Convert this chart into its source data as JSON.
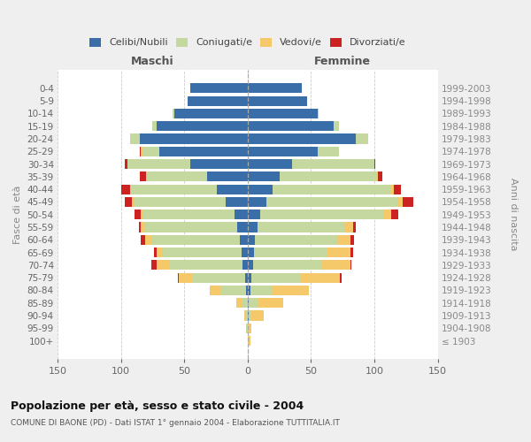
{
  "age_groups": [
    "0-4",
    "5-9",
    "10-14",
    "15-19",
    "20-24",
    "25-29",
    "30-34",
    "35-39",
    "40-44",
    "45-49",
    "50-54",
    "55-59",
    "60-64",
    "65-69",
    "70-74",
    "75-79",
    "80-84",
    "85-89",
    "90-94",
    "95-99",
    "100+"
  ],
  "birth_years": [
    "1999-2003",
    "1994-1998",
    "1989-1993",
    "1984-1988",
    "1979-1983",
    "1974-1978",
    "1969-1973",
    "1964-1968",
    "1959-1963",
    "1954-1958",
    "1949-1953",
    "1944-1948",
    "1939-1943",
    "1934-1938",
    "1929-1933",
    "1924-1928",
    "1919-1923",
    "1914-1918",
    "1909-1913",
    "1904-1908",
    "≤ 1903"
  ],
  "male_celibi": [
    45,
    47,
    58,
    72,
    85,
    70,
    45,
    32,
    24,
    17,
    10,
    8,
    6,
    5,
    4,
    2,
    1,
    0,
    0,
    0,
    0
  ],
  "male_coniugati": [
    0,
    0,
    1,
    3,
    8,
    13,
    50,
    48,
    68,
    72,
    72,
    73,
    70,
    62,
    58,
    42,
    20,
    5,
    2,
    1,
    0
  ],
  "male_vedovi": [
    0,
    0,
    0,
    0,
    0,
    1,
    0,
    0,
    1,
    2,
    2,
    3,
    5,
    5,
    10,
    10,
    9,
    4,
    1,
    0,
    0
  ],
  "male_divorziati": [
    0,
    0,
    0,
    0,
    0,
    1,
    2,
    5,
    7,
    6,
    5,
    2,
    3,
    2,
    4,
    1,
    0,
    0,
    0,
    0,
    0
  ],
  "female_celibi": [
    43,
    47,
    55,
    68,
    85,
    55,
    35,
    25,
    20,
    15,
    10,
    8,
    6,
    5,
    4,
    3,
    2,
    1,
    1,
    0,
    0
  ],
  "female_coniugati": [
    0,
    0,
    1,
    4,
    10,
    17,
    65,
    77,
    93,
    103,
    97,
    68,
    65,
    58,
    55,
    38,
    18,
    7,
    2,
    0,
    0
  ],
  "female_vedovi": [
    0,
    0,
    0,
    0,
    0,
    0,
    0,
    1,
    2,
    4,
    6,
    7,
    10,
    18,
    22,
    32,
    28,
    20,
    10,
    3,
    2
  ],
  "female_divorziati": [
    0,
    0,
    0,
    0,
    0,
    0,
    1,
    3,
    6,
    9,
    6,
    2,
    3,
    2,
    1,
    1,
    0,
    0,
    0,
    0,
    0
  ],
  "colors": {
    "celibi": "#3a6ea8",
    "coniugati": "#c5d8a0",
    "vedovi": "#f5c96a",
    "divorziati": "#cc2222"
  },
  "title_main": "Popolazione per età, sesso e stato civile - 2004",
  "title_sub": "COMUNE DI BAONE (PD) - Dati ISTAT 1° gennaio 2004 - Elaborazione TUTTITALIA.IT",
  "xlabel_left": "Maschi",
  "xlabel_right": "Femmine",
  "ylabel_left": "Fasce di età",
  "ylabel_right": "Anni di nascita",
  "xlim": 150,
  "bg_color": "#efefef",
  "plot_bg": "#ffffff",
  "legend_labels": [
    "Celibi/Nubili",
    "Coniugati/e",
    "Vedovi/e",
    "Divorziati/e"
  ]
}
